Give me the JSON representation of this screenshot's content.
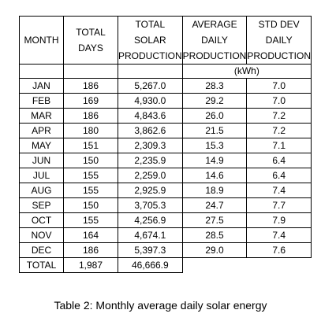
{
  "headers": {
    "month": "MONTH",
    "total_days": [
      "TOTAL",
      "DAYS"
    ],
    "total_solar": [
      "TOTAL",
      "SOLAR",
      "PRODUCTION"
    ],
    "avg_daily": [
      "AVERAGE",
      "DAILY",
      "PRODUCTION"
    ],
    "std_dev": [
      "STD DEV",
      "DAILY",
      "PRODUCTION"
    ],
    "unit": "(kWh)"
  },
  "rows": [
    {
      "month": "JAN",
      "days": "186",
      "total": "5,267.0",
      "avg": "28.3",
      "std": "7.0"
    },
    {
      "month": "FEB",
      "days": "169",
      "total": "4,930.0",
      "avg": "29.2",
      "std": "7.0"
    },
    {
      "month": "MAR",
      "days": "186",
      "total": "4,843.6",
      "avg": "26.0",
      "std": "7.2"
    },
    {
      "month": "APR",
      "days": "180",
      "total": "3,862.6",
      "avg": "21.5",
      "std": "7.2"
    },
    {
      "month": "MAY",
      "days": "151",
      "total": "2,309.3",
      "avg": "15.3",
      "std": "7.1"
    },
    {
      "month": "JUN",
      "days": "150",
      "total": "2,235.9",
      "avg": "14.9",
      "std": "6.4"
    },
    {
      "month": "JUL",
      "days": "155",
      "total": "2,259.0",
      "avg": "14.6",
      "std": "6.4"
    },
    {
      "month": "AUG",
      "days": "155",
      "total": "2,925.9",
      "avg": "18.9",
      "std": "7.4"
    },
    {
      "month": "SEP",
      "days": "150",
      "total": "3,705.3",
      "avg": "24.7",
      "std": "7.7"
    },
    {
      "month": "OCT",
      "days": "155",
      "total": "4,256.9",
      "avg": "27.5",
      "std": "7.9"
    },
    {
      "month": "NOV",
      "days": "164",
      "total": "4,674.1",
      "avg": "28.5",
      "std": "7.4"
    },
    {
      "month": "DEC",
      "days": "186",
      "total": "5,397.3",
      "avg": "29.0",
      "std": "7.6"
    }
  ],
  "totals": {
    "label": "TOTAL",
    "days": "1,987",
    "total": "46,666.9"
  },
  "caption": "Table 2: Monthly average daily solar energy"
}
